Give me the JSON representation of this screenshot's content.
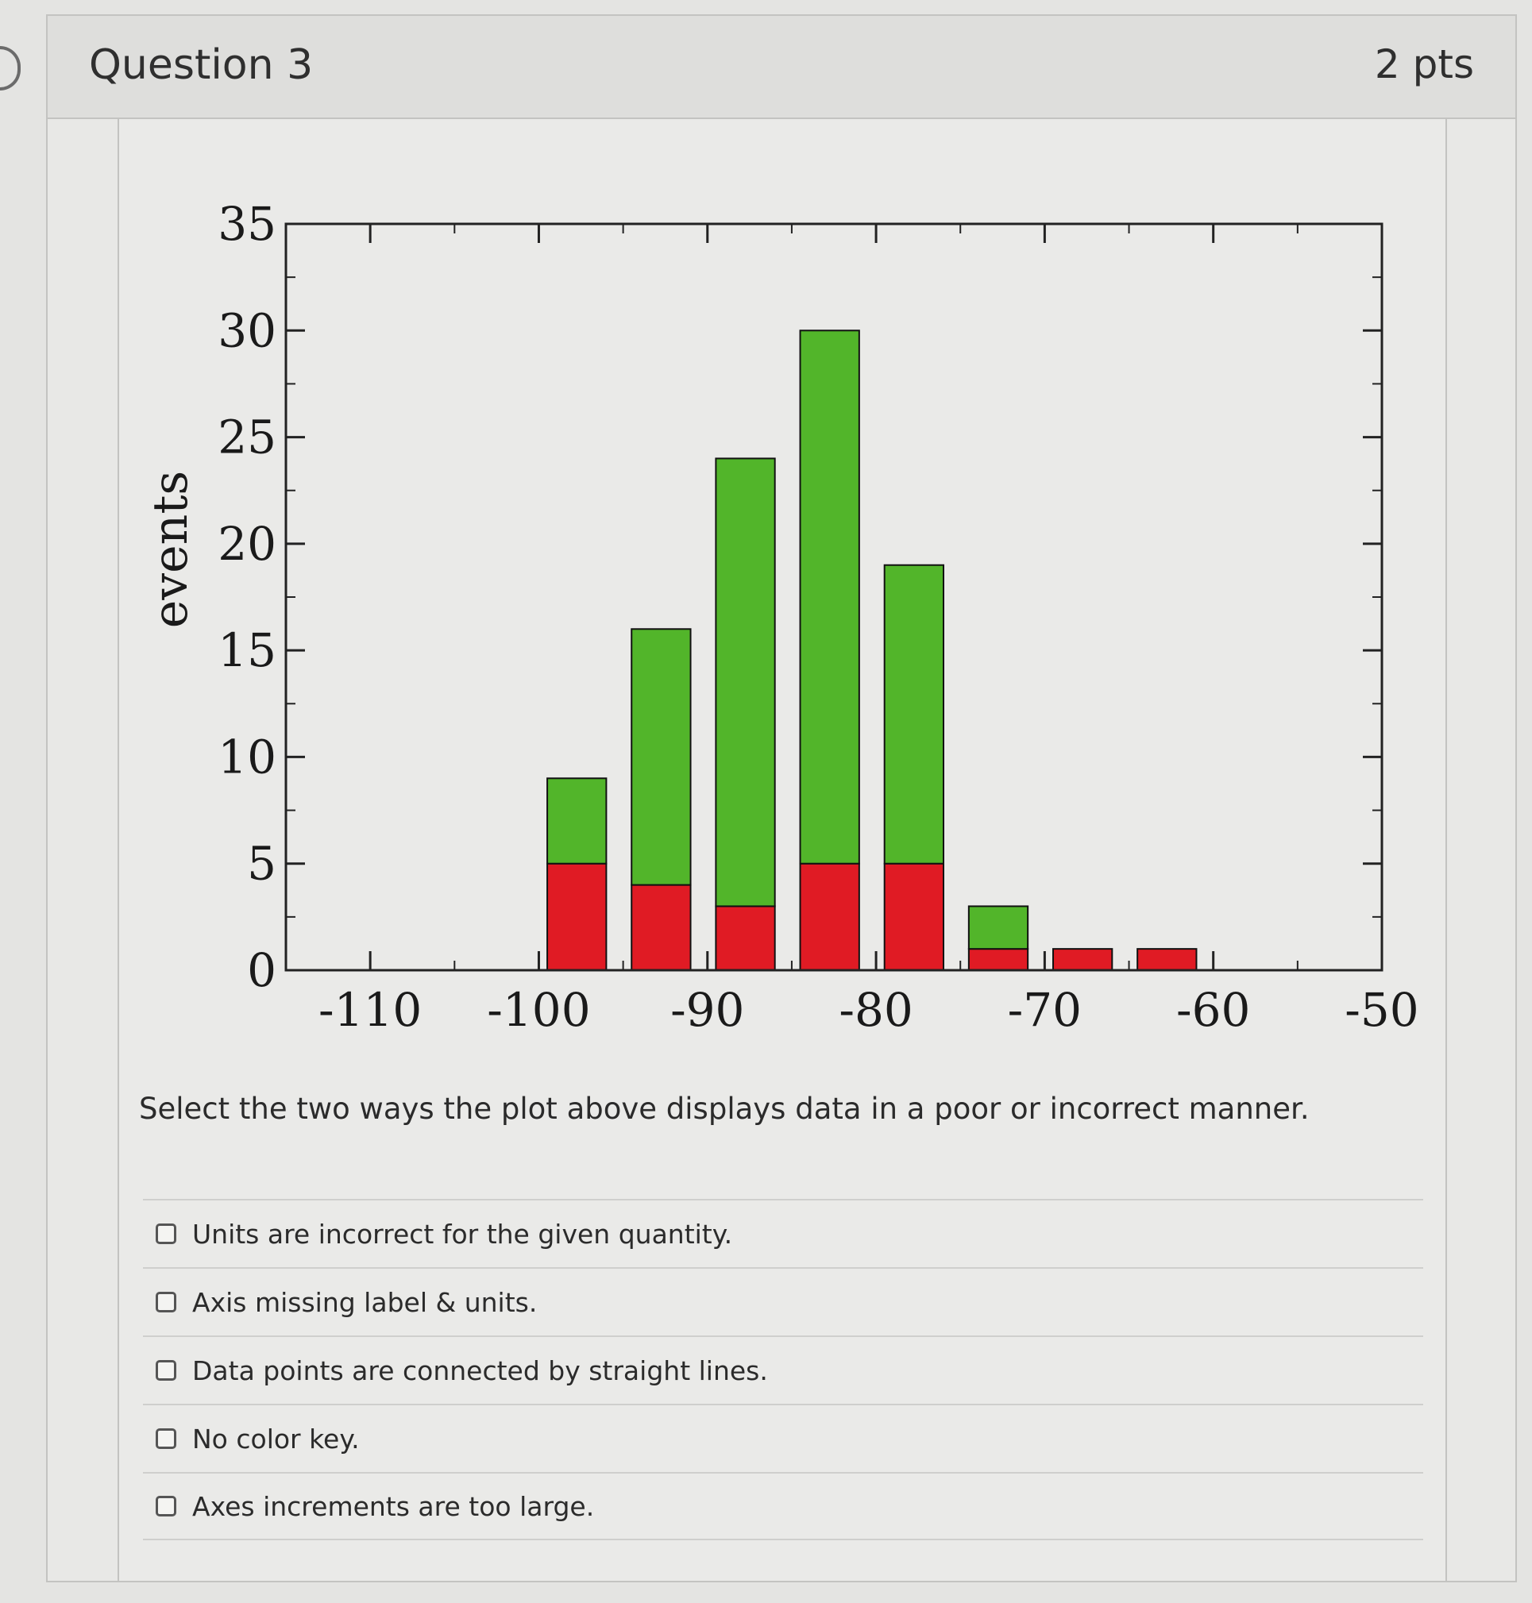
{
  "question": {
    "title": "Question 3",
    "points": "2 pts",
    "prompt": "Select the two ways the plot above displays data in a poor or incorrect manner."
  },
  "options": [
    {
      "label": "Units are incorrect for the given quantity."
    },
    {
      "label": "Axis missing label & units."
    },
    {
      "label": "Data points are connected by straight lines."
    },
    {
      "label": "No color key."
    },
    {
      "label": "Axes increments are too large."
    }
  ],
  "colors": {
    "green": "#52b52a",
    "red": "#e01b24"
  },
  "chart_data": {
    "type": "bar",
    "stacked": true,
    "ylabel": "events",
    "xlabel": "",
    "xlim": [
      -115,
      -50
    ],
    "ylim": [
      0,
      35
    ],
    "x_ticks": [
      -110,
      -100,
      -90,
      -80,
      -70,
      -60,
      -50
    ],
    "y_ticks": [
      0,
      5,
      10,
      15,
      20,
      25,
      30,
      35
    ],
    "bins": [
      {
        "x0": -99.5,
        "x1": -96.0,
        "red": 5,
        "green": 4
      },
      {
        "x0": -94.5,
        "x1": -91.0,
        "red": 4,
        "green": 12
      },
      {
        "x0": -89.5,
        "x1": -86.0,
        "red": 3,
        "green": 21
      },
      {
        "x0": -84.5,
        "x1": -81.0,
        "red": 5,
        "green": 25
      },
      {
        "x0": -79.5,
        "x1": -76.0,
        "red": 5,
        "green": 14
      },
      {
        "x0": -74.5,
        "x1": -71.0,
        "red": 1,
        "green": 2
      },
      {
        "x0": -69.5,
        "x1": -66.0,
        "red": 1,
        "green": 0
      },
      {
        "x0": -64.5,
        "x1": -61.0,
        "red": 1,
        "green": 0
      }
    ],
    "grid": false,
    "legend": "none"
  }
}
